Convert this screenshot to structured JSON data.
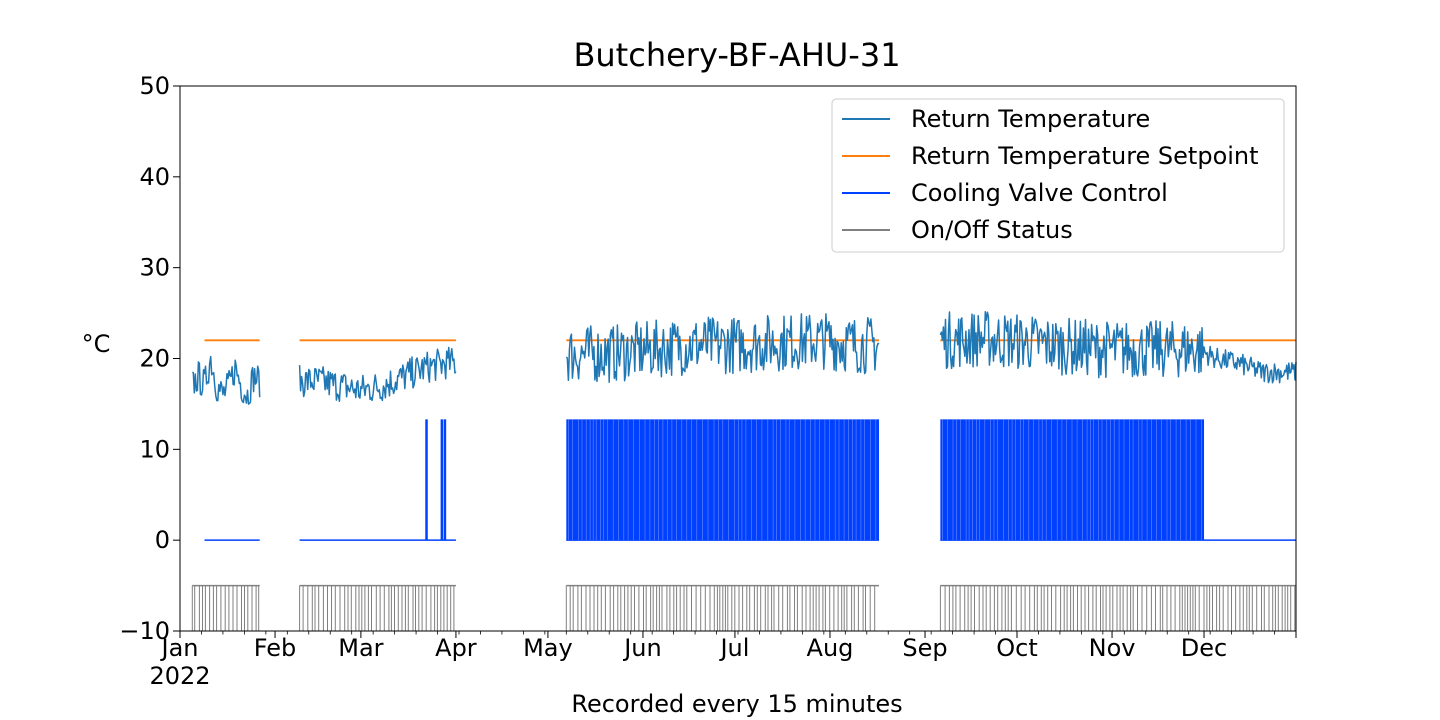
{
  "chart_data": {
    "type": "line",
    "title": "Butchery-BF-AHU-31",
    "xlabel": "Recorded every 15 minutes",
    "ylabel": "°C",
    "year_label": "2022",
    "x_range": [
      "2022-01-01",
      "2022-12-31"
    ],
    "ylim": [
      -10,
      50
    ],
    "y_ticks": [
      -10,
      0,
      10,
      20,
      30,
      40,
      50
    ],
    "y_tick_labels": [
      "−10",
      "0",
      "10",
      "20",
      "30",
      "40",
      "50"
    ],
    "x_ticks": [
      {
        "date": "2022-01-01",
        "label": "Jan"
      },
      {
        "date": "2022-02-01",
        "label": "Feb"
      },
      {
        "date": "2022-03-01",
        "label": "Mar"
      },
      {
        "date": "2022-04-01",
        "label": "Apr"
      },
      {
        "date": "2022-05-01",
        "label": "May"
      },
      {
        "date": "2022-06-01",
        "label": "Jun"
      },
      {
        "date": "2022-07-01",
        "label": "Jul"
      },
      {
        "date": "2022-08-01",
        "label": "Aug"
      },
      {
        "date": "2022-09-01",
        "label": "Sep"
      },
      {
        "date": "2022-10-01",
        "label": "Oct"
      },
      {
        "date": "2022-11-01",
        "label": "Nov"
      },
      {
        "date": "2022-12-01",
        "label": "Dec"
      }
    ],
    "grid": false,
    "legend_position": "top-right",
    "series": [
      {
        "name": "Return Temperature",
        "color": "#1f77b4",
        "segments": [
          {
            "start": "2022-01-05",
            "end": "2022-01-27",
            "points": [
              [
                "2022-01-05",
                17
              ],
              [
                "2022-01-07",
                18
              ],
              [
                "2022-01-09",
                17
              ],
              [
                "2022-01-11",
                20
              ],
              [
                "2022-01-13",
                17
              ],
              [
                "2022-01-15",
                16
              ],
              [
                "2022-01-17",
                17
              ],
              [
                "2022-01-19",
                19
              ],
              [
                "2022-01-21",
                17
              ],
              [
                "2022-01-23",
                16
              ],
              [
                "2022-01-25",
                18
              ],
              [
                "2022-01-27",
                17.5
              ]
            ]
          },
          {
            "start": "2022-02-09",
            "end": "2022-04-01",
            "points": [
              [
                "2022-02-09",
                17.5
              ],
              [
                "2022-02-15",
                17.5
              ],
              [
                "2022-02-22",
                17
              ],
              [
                "2022-03-01",
                16.5
              ],
              [
                "2022-03-08",
                17
              ],
              [
                "2022-03-15",
                18
              ],
              [
                "2022-03-22",
                19
              ],
              [
                "2022-03-29",
                19.5
              ],
              [
                "2022-04-01",
                19.5
              ]
            ]
          },
          {
            "start": "2022-05-07",
            "end": "2022-08-17",
            "points": [
              [
                "2022-05-07",
                20.5
              ],
              [
                "2022-05-21",
                20.5
              ],
              [
                "2022-06-04",
                21
              ],
              [
                "2022-06-18",
                21.5
              ],
              [
                "2022-07-02",
                21.5
              ],
              [
                "2022-07-16",
                21.8
              ],
              [
                "2022-07-30",
                22
              ],
              [
                "2022-08-10",
                21.5
              ],
              [
                "2022-08-17",
                21.5
              ]
            ]
          },
          {
            "start": "2022-09-06",
            "end": "2022-12-31",
            "points": [
              [
                "2022-09-06",
                22
              ],
              [
                "2022-09-20",
                22.2
              ],
              [
                "2022-10-04",
                21.8
              ],
              [
                "2022-10-18",
                21.3
              ],
              [
                "2022-11-01",
                21
              ],
              [
                "2022-11-15",
                21
              ],
              [
                "2022-11-29",
                21
              ],
              [
                "2022-12-05",
                20
              ],
              [
                "2022-12-12",
                19.5
              ],
              [
                "2022-12-20",
                18.5
              ],
              [
                "2022-12-31",
                18.5
              ]
            ]
          }
        ]
      },
      {
        "name": "Return Temperature Setpoint",
        "color": "#ff7f0e",
        "segments": [
          {
            "start": "2022-01-09",
            "end": "2022-01-27",
            "points": [
              [
                "2022-01-09",
                22
              ],
              [
                "2022-01-27",
                22
              ]
            ]
          },
          {
            "start": "2022-02-09",
            "end": "2022-04-01",
            "points": [
              [
                "2022-02-09",
                22
              ],
              [
                "2022-04-01",
                22
              ]
            ]
          },
          {
            "start": "2022-05-07",
            "end": "2022-08-17",
            "points": [
              [
                "2022-05-07",
                22
              ],
              [
                "2022-08-17",
                22
              ]
            ]
          },
          {
            "start": "2022-09-06",
            "end": "2022-12-31",
            "points": [
              [
                "2022-09-06",
                22
              ],
              [
                "2022-12-31",
                22
              ]
            ]
          }
        ]
      },
      {
        "name": "Cooling Valve Control",
        "color": "#0040ff",
        "segments": [
          {
            "start": "2022-01-09",
            "end": "2022-01-27",
            "points": [
              [
                "2022-01-09",
                0
              ],
              [
                "2022-01-27",
                0
              ]
            ]
          },
          {
            "start": "2022-02-09",
            "end": "2022-04-01",
            "points": [
              [
                "2022-02-09",
                0
              ],
              [
                "2022-04-01",
                0
              ]
            ]
          },
          {
            "start": "2022-05-07",
            "end": "2022-08-17",
            "points": [
              [
                "2022-05-07",
                0
              ],
              [
                "2022-08-17",
                0
              ]
            ]
          },
          {
            "start": "2022-09-06",
            "end": "2022-12-31",
            "points": [
              [
                "2022-09-06",
                0
              ],
              [
                "2022-12-31",
                0
              ]
            ]
          }
        ]
      },
      {
        "name": "On/Off Status",
        "color": "#808080",
        "segments": [
          {
            "start": "2022-01-05",
            "end": "2022-01-27",
            "points": [
              [
                "2022-01-05",
                -10
              ],
              [
                "2022-01-27",
                -10
              ]
            ]
          },
          {
            "start": "2022-02-09",
            "end": "2022-04-01",
            "points": [
              [
                "2022-02-09",
                -10
              ],
              [
                "2022-04-01",
                -10
              ]
            ]
          },
          {
            "start": "2022-05-07",
            "end": "2022-08-17",
            "points": [
              [
                "2022-05-07",
                -10
              ],
              [
                "2022-08-17",
                -10
              ]
            ]
          },
          {
            "start": "2022-09-06",
            "end": "2022-12-31",
            "points": [
              [
                "2022-09-06",
                -10
              ],
              [
                "2022-12-31",
                -10
              ]
            ]
          }
        ]
      }
    ]
  }
}
